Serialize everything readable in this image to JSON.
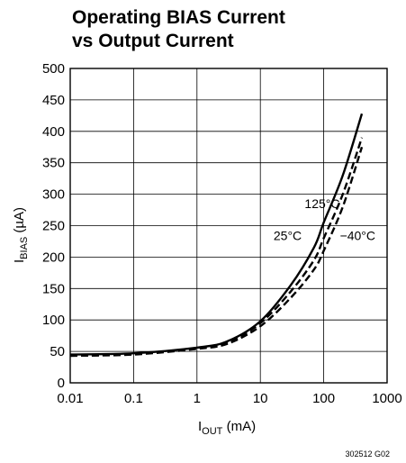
{
  "chart_data": {
    "type": "line",
    "title_lines": [
      "Operating BIAS Current",
      "vs Output Current"
    ],
    "xlabel": {
      "main": "I",
      "sub": "OUT",
      "unit": " (mA)"
    },
    "ylabel": {
      "main": "I",
      "sub": "BIAS",
      "unit": " (µA)"
    },
    "x_scale": "log",
    "xlim": [
      0.01,
      1000
    ],
    "ylim": [
      0,
      500
    ],
    "x_ticks": [
      0.01,
      0.1,
      1,
      10,
      100,
      1000
    ],
    "x_tick_labels": [
      "0.01",
      "0.1",
      "1",
      "10",
      "100",
      "1000"
    ],
    "y_ticks": [
      0,
      50,
      100,
      150,
      200,
      250,
      300,
      350,
      400,
      450,
      500
    ],
    "y_tick_labels": [
      "0",
      "50",
      "100",
      "150",
      "200",
      "250",
      "300",
      "350",
      "400",
      "450",
      "500"
    ],
    "grid": true,
    "series": [
      {
        "name": "125°C",
        "style": "solid",
        "x": [
          0.01,
          0.1,
          1,
          3,
          10,
          30,
          70,
          100,
          200,
          400
        ],
        "y": [
          45,
          47,
          56,
          66,
          98,
          155,
          215,
          255,
          330,
          428
        ]
      },
      {
        "name": "25°C",
        "style": "dashed",
        "x": [
          0.01,
          0.1,
          1,
          3,
          10,
          30,
          70,
          100,
          200,
          400
        ],
        "y": [
          44,
          46,
          55,
          64,
          95,
          145,
          195,
          230,
          300,
          390
        ]
      },
      {
        "name": "−40°C",
        "style": "dashed",
        "x": [
          0.01,
          0.1,
          1,
          3,
          10,
          30,
          70,
          100,
          200,
          400
        ],
        "y": [
          43,
          45,
          54,
          62,
          90,
          135,
          180,
          210,
          280,
          375
        ]
      }
    ],
    "annotations": [
      {
        "text": "125°C",
        "x": 50,
        "y": 278,
        "anchor": "start"
      },
      {
        "text": "25°C",
        "x": 45,
        "y": 227,
        "anchor": "end"
      },
      {
        "text": "−40°C",
        "x": 180,
        "y": 227,
        "anchor": "start"
      }
    ],
    "figure_id": "302512 G02"
  }
}
